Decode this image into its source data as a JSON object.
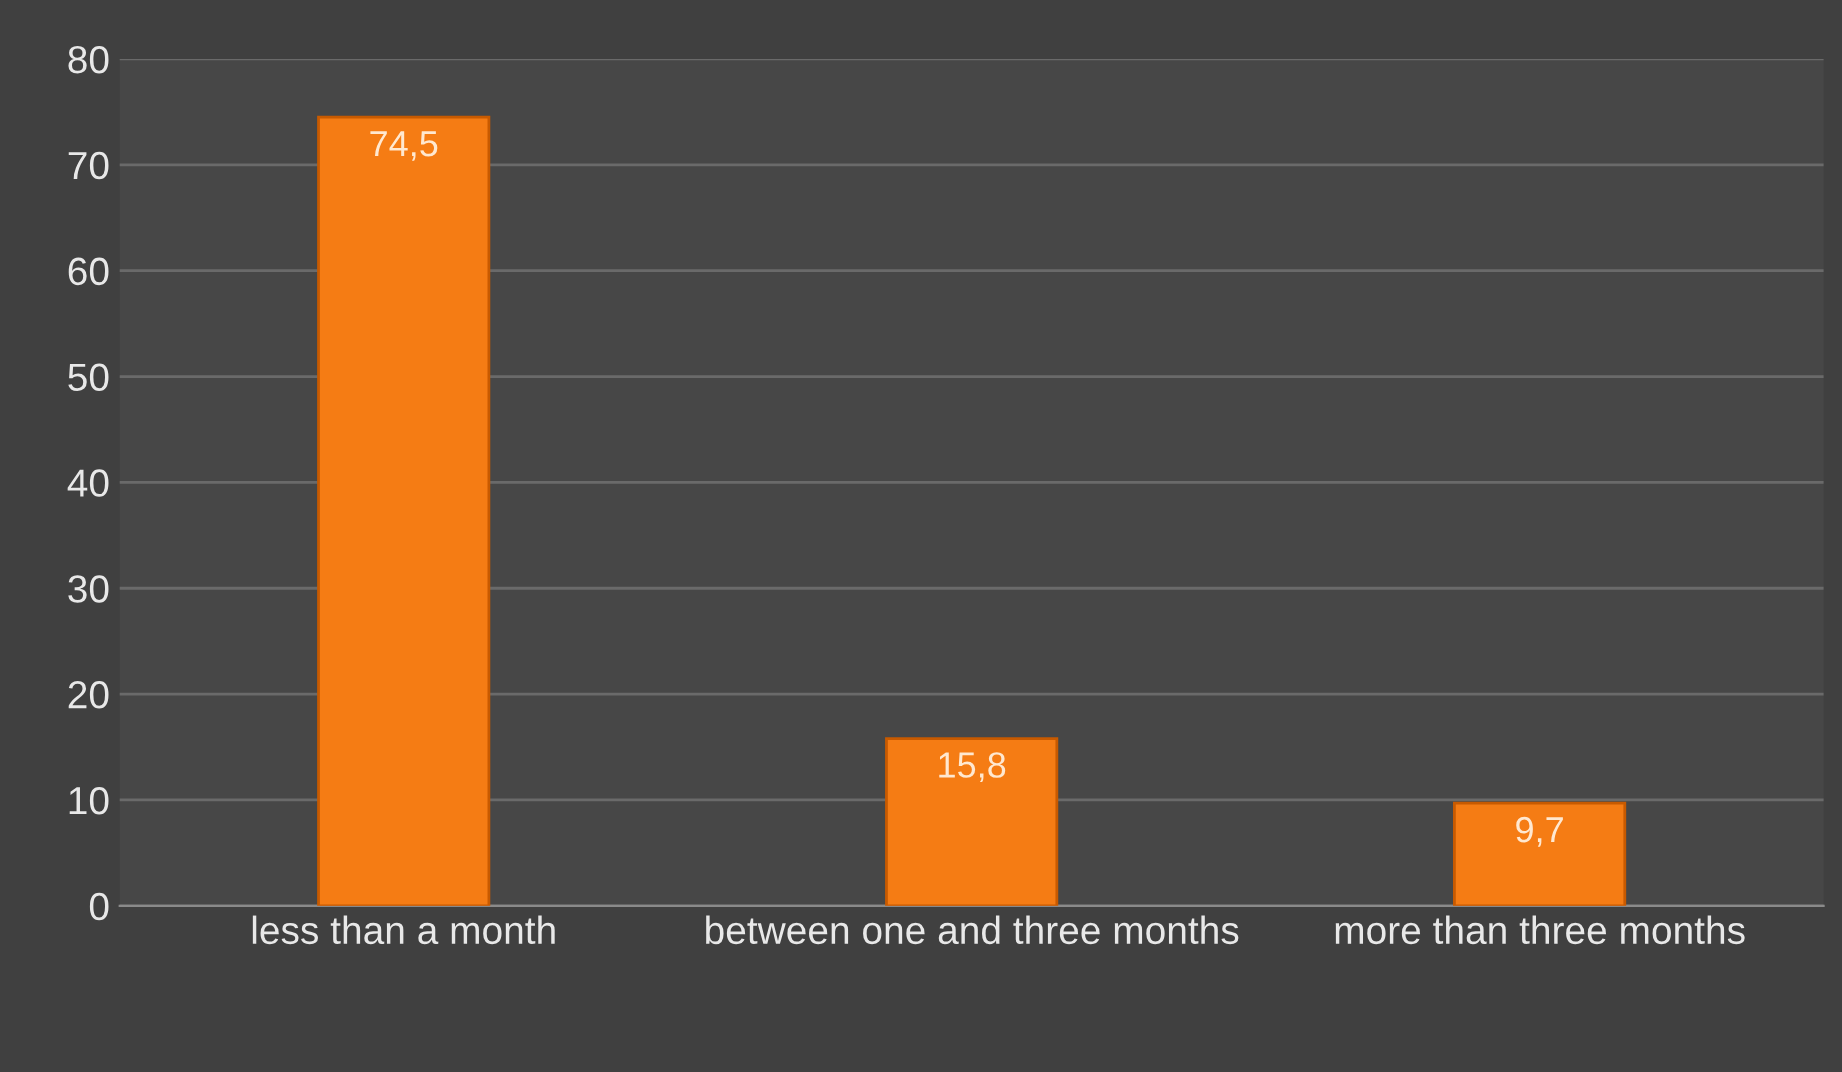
{
  "chart_data": {
    "type": "bar",
    "categories": [
      "less than a month",
      "between one and three months",
      "more than three months"
    ],
    "values": [
      74.5,
      15.8,
      9.7
    ],
    "value_labels": [
      "74,5",
      "15,8",
      "9,7"
    ],
    "color": "#f57c14",
    "ylim": [
      0,
      80
    ],
    "yticks": [
      0,
      10,
      20,
      30,
      40,
      50,
      60,
      70,
      80
    ],
    "grid": "y"
  }
}
